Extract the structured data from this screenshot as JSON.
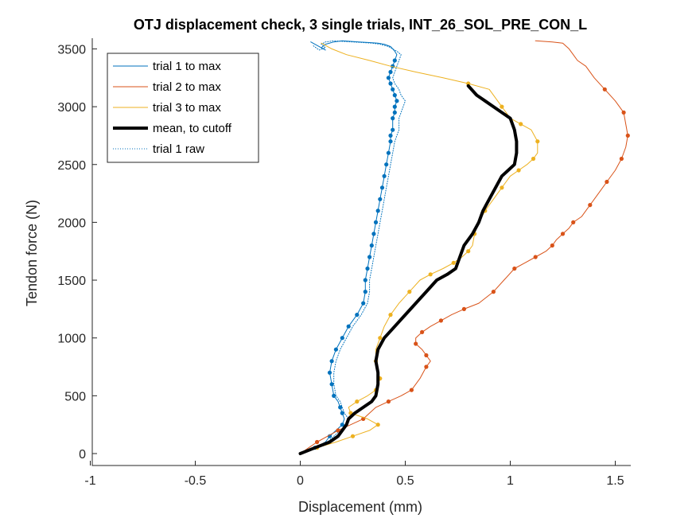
{
  "chart_data": {
    "type": "line",
    "title": "OTJ displacement check, 3 single trials, INT_26_SOL_PRE_CON_L",
    "xlabel": "Displacement (mm)",
    "ylabel": "Tendon force (N)",
    "xlim": [
      -1,
      1.6
    ],
    "ylim": [
      -100,
      3650
    ],
    "x_ticks": [
      -1,
      -0.5,
      0,
      0.5,
      1,
      1.5
    ],
    "x_tick_labels": [
      "-1",
      "-0.5",
      "0",
      "0.5",
      "1",
      "1.5"
    ],
    "y_ticks": [
      0,
      500,
      1000,
      1500,
      2000,
      2500,
      3000,
      3500
    ],
    "y_tick_labels": [
      "0",
      "500",
      "1000",
      "1500",
      "2000",
      "2500",
      "3000",
      "3500"
    ],
    "grid": false,
    "legend_position": "top-left",
    "legend": [
      {
        "label": "trial 1 to max",
        "color": "#0072BD",
        "style": "solid",
        "width": 1
      },
      {
        "label": "trial 2 to max",
        "color": "#D95319",
        "style": "solid",
        "width": 1
      },
      {
        "label": "trial 3 to max",
        "color": "#EDB120",
        "style": "solid",
        "width": 1
      },
      {
        "label": "mean, to cutoff",
        "color": "#000000",
        "style": "solid",
        "width": 4
      },
      {
        "label": "trial 1 raw",
        "color": "#0072BD",
        "style": "dotted",
        "width": 1
      }
    ],
    "series": [
      {
        "name": "trial 1 to max",
        "color": "#0072BD",
        "x": [
          0.0,
          0.07,
          0.12,
          0.14,
          0.17,
          0.2,
          0.21,
          0.2,
          0.19,
          0.18,
          0.16,
          0.15,
          0.14,
          0.15,
          0.17,
          0.2,
          0.23,
          0.27,
          0.3,
          0.31,
          0.31,
          0.32,
          0.33,
          0.34,
          0.35,
          0.36,
          0.37,
          0.38,
          0.39,
          0.4,
          0.41,
          0.42,
          0.43,
          0.43,
          0.44,
          0.44,
          0.45,
          0.45,
          0.46,
          0.45,
          0.44,
          0.43,
          0.42,
          0.43,
          0.44,
          0.45,
          0.46,
          0.45,
          0.44,
          0.43,
          0.4,
          0.37,
          0.33,
          0.28,
          0.24,
          0.2,
          0.16,
          0.12,
          0.1,
          0.12,
          0.08,
          0.05
        ],
        "y": [
          0,
          50,
          100,
          150,
          200,
          250,
          300,
          350,
          400,
          450,
          500,
          600,
          700,
          800,
          900,
          1000,
          1100,
          1200,
          1300,
          1400,
          1500,
          1600,
          1700,
          1800,
          1900,
          2000,
          2100,
          2200,
          2300,
          2400,
          2500,
          2600,
          2700,
          2750,
          2800,
          2900,
          2950,
          3000,
          3050,
          3100,
          3150,
          3200,
          3250,
          3300,
          3350,
          3400,
          3450,
          3480,
          3500,
          3520,
          3540,
          3550,
          3555,
          3560,
          3565,
          3570,
          3560,
          3540,
          3510,
          3490,
          3530,
          3560
        ],
        "marker_indices": [
          1,
          3,
          5,
          7,
          8,
          10,
          11,
          12,
          13,
          14,
          15,
          16,
          17,
          18,
          19,
          20,
          21,
          22,
          23,
          24,
          25,
          26,
          27,
          28,
          29,
          30,
          31,
          32,
          33,
          34,
          35,
          36,
          37,
          38,
          39,
          40,
          41,
          42,
          43,
          44,
          45
        ]
      },
      {
        "name": "trial 2 to max",
        "color": "#D95319",
        "x": [
          0.0,
          0.04,
          0.08,
          0.13,
          0.18,
          0.24,
          0.3,
          0.36,
          0.42,
          0.48,
          0.53,
          0.57,
          0.6,
          0.62,
          0.6,
          0.58,
          0.55,
          0.55,
          0.58,
          0.62,
          0.67,
          0.72,
          0.78,
          0.85,
          0.92,
          0.97,
          1.02,
          1.07,
          1.12,
          1.17,
          1.2,
          1.22,
          1.25,
          1.28,
          1.3,
          1.34,
          1.38,
          1.42,
          1.46,
          1.5,
          1.53,
          1.55,
          1.56,
          1.55,
          1.54,
          1.5,
          1.45,
          1.4,
          1.36,
          1.32,
          1.3,
          1.28,
          1.25,
          1.2,
          1.12
        ],
        "y": [
          0,
          50,
          100,
          150,
          200,
          250,
          300,
          400,
          450,
          500,
          550,
          650,
          750,
          800,
          850,
          900,
          950,
          1000,
          1050,
          1100,
          1150,
          1200,
          1250,
          1300,
          1400,
          1500,
          1600,
          1650,
          1700,
          1750,
          1800,
          1850,
          1900,
          1950,
          2000,
          2050,
          2150,
          2250,
          2350,
          2450,
          2550,
          2650,
          2750,
          2850,
          2950,
          3050,
          3150,
          3250,
          3350,
          3400,
          3450,
          3500,
          3550,
          3560,
          3570
        ],
        "marker_indices": [
          2,
          4,
          6,
          8,
          10,
          12,
          14,
          16,
          18,
          20,
          22,
          24,
          26,
          28,
          30,
          32,
          34,
          36,
          38,
          40,
          42,
          44,
          46
        ]
      },
      {
        "name": "trial 3 to max",
        "color": "#EDB120",
        "x": [
          0.0,
          0.08,
          0.17,
          0.25,
          0.33,
          0.37,
          0.32,
          0.24,
          0.23,
          0.27,
          0.32,
          0.36,
          0.37,
          0.38,
          0.37,
          0.36,
          0.36,
          0.38,
          0.4,
          0.43,
          0.47,
          0.52,
          0.57,
          0.62,
          0.68,
          0.73,
          0.77,
          0.8,
          0.82,
          0.83,
          0.85,
          0.88,
          0.92,
          0.96,
          1.0,
          1.04,
          1.08,
          1.11,
          1.13,
          1.13,
          1.1,
          1.05,
          1.0,
          0.96,
          0.9,
          0.8,
          0.68,
          0.55,
          0.43,
          0.33,
          0.22,
          0.15,
          0.12,
          0.1
        ],
        "y": [
          0,
          50,
          100,
          150,
          200,
          250,
          300,
          350,
          400,
          450,
          500,
          550,
          600,
          650,
          700,
          800,
          900,
          1000,
          1100,
          1200,
          1300,
          1400,
          1500,
          1550,
          1600,
          1650,
          1700,
          1750,
          1800,
          1900,
          2000,
          2100,
          2200,
          2300,
          2400,
          2450,
          2500,
          2550,
          2600,
          2700,
          2800,
          2850,
          2900,
          3000,
          3150,
          3200,
          3250,
          3300,
          3350,
          3400,
          3450,
          3500,
          3530,
          3550
        ],
        "marker_indices": [
          1,
          3,
          5,
          7,
          9,
          11,
          13,
          15,
          17,
          19,
          21,
          23,
          25,
          27,
          29,
          31,
          33,
          35,
          37,
          39,
          41,
          43,
          45
        ]
      },
      {
        "name": "mean, to cutoff",
        "color": "#000000",
        "x": [
          0.0,
          0.07,
          0.14,
          0.18,
          0.2,
          0.22,
          0.23,
          0.26,
          0.3,
          0.34,
          0.36,
          0.37,
          0.37,
          0.36,
          0.37,
          0.4,
          0.45,
          0.5,
          0.55,
          0.6,
          0.65,
          0.7,
          0.74,
          0.76,
          0.78,
          0.82,
          0.85,
          0.87,
          0.9,
          0.93,
          0.96,
          0.99,
          1.02,
          1.03,
          1.03,
          1.02,
          1.0,
          0.96,
          0.92,
          0.88,
          0.84,
          0.8
        ],
        "y": [
          0,
          50,
          100,
          150,
          200,
          250,
          300,
          350,
          400,
          450,
          500,
          600,
          700,
          800,
          900,
          1000,
          1100,
          1200,
          1300,
          1400,
          1500,
          1550,
          1600,
          1700,
          1800,
          1900,
          2000,
          2100,
          2200,
          2300,
          2400,
          2450,
          2500,
          2600,
          2700,
          2800,
          2900,
          2950,
          3000,
          3050,
          3100,
          3180
        ]
      },
      {
        "name": "trial 1 raw",
        "color": "#0072BD",
        "x": [
          0.0,
          0.08,
          0.13,
          0.16,
          0.19,
          0.22,
          0.23,
          0.21,
          0.2,
          0.19,
          0.17,
          0.16,
          0.16,
          0.17,
          0.19,
          0.22,
          0.25,
          0.29,
          0.32,
          0.33,
          0.33,
          0.34,
          0.35,
          0.36,
          0.37,
          0.38,
          0.39,
          0.4,
          0.41,
          0.42,
          0.43,
          0.44,
          0.45,
          0.46,
          0.47,
          0.47,
          0.48,
          0.49,
          0.5,
          0.48,
          0.47,
          0.45,
          0.44,
          0.45,
          0.46,
          0.47,
          0.48,
          0.46,
          0.44,
          0.42,
          0.38,
          0.34,
          0.3,
          0.25,
          0.2,
          0.16,
          0.12,
          0.1,
          0.12,
          0.09,
          0.06
        ],
        "y": [
          0,
          50,
          100,
          150,
          200,
          250,
          300,
          350,
          400,
          450,
          500,
          600,
          700,
          800,
          900,
          1000,
          1100,
          1200,
          1300,
          1400,
          1500,
          1600,
          1700,
          1800,
          1900,
          2000,
          2100,
          2200,
          2300,
          2400,
          2500,
          2600,
          2700,
          2750,
          2800,
          2900,
          2950,
          3000,
          3050,
          3100,
          3150,
          3200,
          3250,
          3300,
          3350,
          3400,
          3450,
          3480,
          3500,
          3520,
          3540,
          3550,
          3555,
          3560,
          3565,
          3570,
          3560,
          3540,
          3510,
          3490,
          3530
        ]
      }
    ]
  }
}
